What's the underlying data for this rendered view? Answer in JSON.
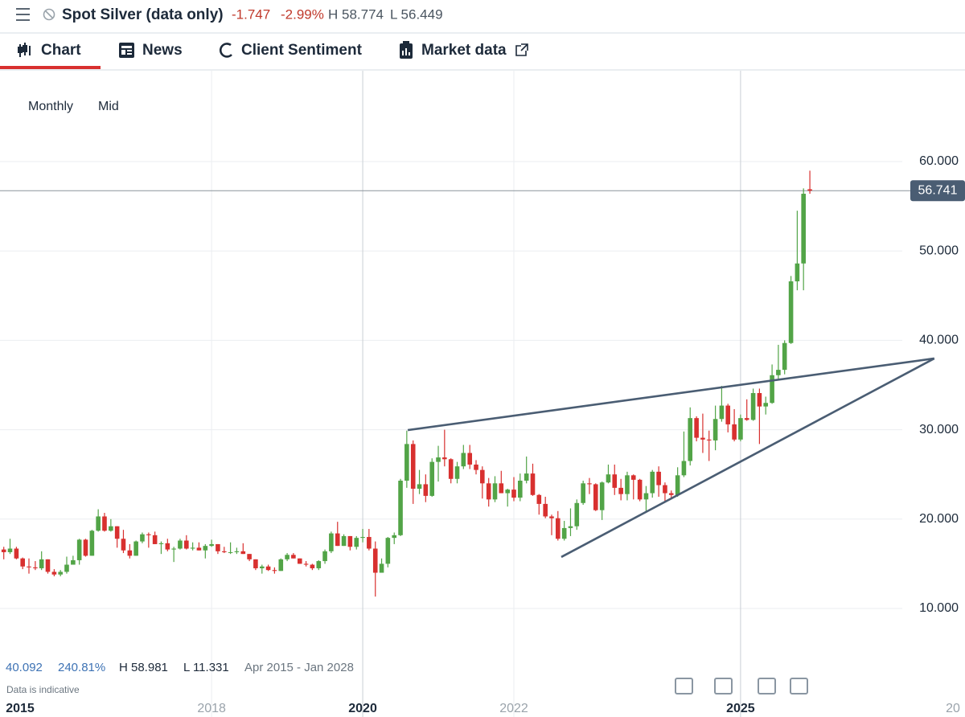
{
  "header": {
    "title": "Spot Silver (data only)",
    "change": "-1.747",
    "change_pct": "-2.99%",
    "high": "H 58.774",
    "low": "L 56.449"
  },
  "tabs": [
    "Chart",
    "News",
    "Client Sentiment",
    "Market data"
  ],
  "toolbar": {
    "interval": "Monthly",
    "price_type": "Mid"
  },
  "summary": {
    "change": "40.092",
    "change_pct": "240.81%",
    "high": "H 58.981",
    "low": "L 11.331",
    "range": "Apr 2015 - Jan 2028"
  },
  "note": "Data is indicative",
  "chart_data": {
    "type": "candlestick",
    "x": [
      2015.25,
      2015.333,
      2015.417,
      2015.5,
      2015.583,
      2015.667,
      2015.75,
      2015.833,
      2015.917,
      2016,
      2016.083,
      2016.167,
      2016.25,
      2016.333,
      2016.417,
      2016.5,
      2016.583,
      2016.667,
      2016.75,
      2016.833,
      2016.917,
      2017,
      2017.083,
      2017.167,
      2017.25,
      2017.333,
      2017.417,
      2017.5,
      2017.583,
      2017.667,
      2017.75,
      2017.833,
      2017.917,
      2018,
      2018.083,
      2018.167,
      2018.25,
      2018.333,
      2018.417,
      2018.5,
      2018.583,
      2018.667,
      2018.75,
      2018.833,
      2018.917,
      2019,
      2019.083,
      2019.167,
      2019.25,
      2019.333,
      2019.417,
      2019.5,
      2019.583,
      2019.667,
      2019.75,
      2019.833,
      2019.917,
      2020,
      2020.083,
      2020.167,
      2020.25,
      2020.333,
      2020.417,
      2020.5,
      2020.583,
      2020.667,
      2020.75,
      2020.833,
      2020.917,
      2021,
      2021.083,
      2021.167,
      2021.25,
      2021.333,
      2021.417,
      2021.5,
      2021.583,
      2021.667,
      2021.75,
      2021.833,
      2021.917,
      2022,
      2022.083,
      2022.167,
      2022.25,
      2022.333,
      2022.417,
      2022.5,
      2022.583,
      2022.667,
      2022.75,
      2022.833,
      2022.917,
      2023,
      2023.083,
      2023.167,
      2023.25,
      2023.333,
      2023.417,
      2023.5,
      2023.583,
      2023.667,
      2023.75,
      2023.833,
      2023.917,
      2024,
      2024.083,
      2024.167,
      2024.25,
      2024.333,
      2024.417,
      2024.5,
      2024.583,
      2024.667,
      2024.75,
      2024.833,
      2024.917,
      2025,
      2025.083,
      2025.167,
      2025.25,
      2025.333,
      2025.417,
      2025.5,
      2025.583,
      2025.667,
      2025.75,
      2025.833,
      2025.917
    ],
    "open": [
      16.6,
      16.3,
      16.7,
      15.6,
      14.7,
      14.6,
      14.5,
      15.5,
      14.1,
      13.8,
      14.1,
      14.9,
      15.4,
      17.7,
      15.9,
      18.7,
      20.3,
      18.7,
      19.2,
      17.8,
      16.5,
      15.9,
      17.5,
      18.3,
      18.2,
      17.2,
      17.3,
      16.6,
      16.7,
      17.6,
      16.7,
      16.8,
      16.5,
      17.0,
      17.2,
      16.4,
      16.3,
      16.3,
      16.4,
      16.1,
      15.5,
      14.5,
      14.7,
      14.3,
      14.2,
      15.5,
      16.0,
      15.6,
      15.0,
      14.9,
      14.5,
      15.3,
      16.4,
      18.4,
      17.0,
      18.1,
      16.9,
      17.9,
      18.0,
      16.7,
      14.0,
      15.0,
      17.9,
      18.2,
      24.3,
      28.4,
      23.4,
      23.9,
      22.6,
      26.4,
      26.9,
      26.7,
      24.5,
      25.9,
      27.4,
      26.1,
      25.5,
      24.0,
      22.2,
      24.0,
      22.9,
      23.3,
      22.4,
      24.3,
      25.1,
      22.7,
      21.7,
      20.3,
      20.1,
      17.8,
      19.0,
      19.2,
      21.8,
      24.0,
      23.9,
      21.0,
      24.1,
      25.0,
      23.5,
      22.8,
      24.9,
      24.4,
      22.2,
      22.9,
      25.3,
      23.8,
      22.9,
      22.7,
      24.9,
      26.5,
      31.3,
      29.1,
      28.9,
      28.8,
      31.2,
      32.7,
      30.6,
      28.9,
      31.3,
      31.1,
      34.1,
      32.6,
      33.0,
      36.1,
      36.7,
      39.7,
      46.6,
      48.6,
      56.9
    ],
    "high": [
      16.9,
      17.8,
      16.9,
      15.7,
      15.6,
      15.3,
      16.4,
      15.5,
      14.4,
      14.3,
      15.8,
      15.9,
      17.8,
      17.8,
      18.8,
      21.1,
      20.7,
      20.0,
      19.2,
      18.8,
      17.2,
      17.6,
      18.5,
      18.5,
      18.6,
      17.5,
      17.8,
      16.9,
      17.8,
      18.2,
      17.4,
      17.4,
      17.2,
      17.7,
      17.2,
      16.9,
      17.4,
      16.8,
      17.3,
      16.1,
      15.5,
      14.9,
      14.9,
      14.6,
      15.6,
      16.2,
      16.2,
      15.6,
      15.3,
      15.0,
      15.4,
      16.6,
      18.6,
      19.7,
      18.3,
      18.1,
      18.1,
      18.9,
      18.9,
      17.5,
      15.6,
      18.0,
      18.5,
      24.5,
      29.9,
      28.8,
      25.5,
      25.0,
      26.8,
      28.2,
      30.0,
      26.8,
      26.4,
      28.3,
      28.3,
      26.6,
      25.9,
      24.6,
      24.8,
      25.4,
      23.4,
      24.7,
      25.1,
      27.0,
      26.2,
      22.8,
      22.5,
      20.5,
      20.9,
      19.8,
      21.2,
      22.2,
      24.3,
      24.6,
      24.0,
      24.2,
      26.1,
      26.1,
      24.5,
      25.3,
      25.0,
      24.5,
      23.7,
      25.5,
      25.9,
      24.1,
      23.2,
      25.8,
      29.8,
      32.5,
      31.5,
      31.8,
      29.9,
      32.7,
      34.9,
      32.9,
      32.3,
      31.7,
      33.4,
      34.6,
      34.6,
      33.7,
      37.3,
      39.5,
      40.0,
      47.2,
      54.5,
      57.0,
      58.981
    ],
    "low": [
      15.5,
      16.1,
      15.5,
      14.4,
      13.9,
      14.3,
      14.3,
      13.9,
      13.6,
      13.6,
      13.9,
      14.9,
      14.9,
      15.8,
      15.9,
      18.6,
      18.6,
      18.6,
      16.8,
      16.2,
      15.6,
      15.9,
      17.3,
      16.8,
      17.2,
      16.1,
      16.4,
      15.2,
      16.6,
      16.6,
      16.5,
      16.5,
      15.6,
      16.9,
      16.1,
      16.2,
      16.1,
      16.1,
      16.1,
      15.3,
      14.3,
      13.9,
      14.2,
      13.9,
      14.2,
      15.3,
      15.6,
      15.0,
      14.7,
      14.3,
      14.3,
      15.0,
      16.2,
      17.0,
      17.0,
      16.5,
      16.6,
      17.4,
      16.5,
      11.331,
      14.0,
      14.6,
      17.2,
      18.1,
      23.5,
      21.7,
      22.8,
      21.9,
      22.5,
      24.2,
      25.9,
      24.0,
      24.0,
      25.6,
      25.6,
      25.0,
      22.3,
      21.4,
      21.9,
      22.9,
      21.4,
      22.0,
      22.0,
      24.0,
      22.6,
      20.5,
      20.1,
      18.2,
      17.6,
      17.6,
      18.1,
      18.8,
      21.6,
      22.8,
      20.9,
      19.9,
      24.0,
      22.7,
      22.1,
      22.1,
      22.2,
      22.0,
      20.7,
      22.4,
      22.5,
      21.9,
      22.3,
      22.5,
      24.7,
      26.0,
      28.7,
      27.4,
      26.5,
      27.7,
      30.9,
      29.7,
      28.7,
      28.7,
      31.0,
      31.0,
      28.4,
      31.7,
      32.9,
      35.5,
      36.2,
      39.6,
      45.6,
      45.6,
      56.4
    ],
    "close": [
      16.3,
      16.7,
      15.6,
      14.7,
      14.6,
      14.5,
      15.5,
      14.1,
      13.8,
      14.1,
      14.9,
      15.4,
      17.7,
      15.9,
      18.7,
      20.3,
      18.7,
      19.2,
      17.8,
      16.5,
      15.9,
      17.5,
      18.3,
      18.2,
      17.2,
      17.3,
      16.6,
      16.7,
      17.6,
      16.7,
      16.8,
      16.5,
      17.0,
      17.2,
      16.4,
      16.3,
      16.3,
      16.4,
      16.1,
      15.5,
      14.5,
      14.7,
      14.3,
      14.2,
      15.5,
      16.0,
      15.6,
      15.0,
      14.9,
      14.5,
      15.3,
      16.4,
      18.4,
      17.0,
      18.1,
      16.9,
      17.9,
      18.0,
      16.7,
      14.0,
      15.0,
      17.9,
      18.2,
      24.3,
      28.4,
      23.4,
      23.9,
      22.6,
      26.4,
      26.9,
      26.7,
      24.5,
      25.9,
      27.4,
      26.1,
      25.5,
      24.0,
      22.2,
      24.0,
      22.9,
      23.3,
      22.4,
      24.3,
      25.1,
      22.7,
      21.7,
      20.3,
      20.1,
      17.8,
      19.0,
      19.2,
      21.8,
      24.0,
      23.9,
      21.0,
      24.1,
      25.0,
      23.5,
      22.8,
      24.9,
      24.4,
      22.2,
      22.9,
      25.3,
      23.8,
      22.9,
      22.7,
      24.9,
      26.5,
      31.3,
      29.1,
      28.9,
      28.8,
      31.2,
      32.7,
      30.6,
      28.9,
      31.3,
      31.1,
      34.1,
      32.6,
      33.0,
      36.1,
      36.7,
      39.7,
      46.6,
      48.6,
      56.4,
      56.741
    ],
    "up_color": "#52a447",
    "down_color": "#d8302f",
    "xlim": [
      2015.2,
      2027.97
    ],
    "xticks": [
      2015,
      2018,
      2020,
      2022,
      2025,
      {
        "value": 2028,
        "label": "20"
      }
    ],
    "ylim": [
      0,
      70
    ],
    "yticks": [
      {
        "value": 10,
        "label": "10.000"
      },
      {
        "value": 20,
        "label": "20.000"
      },
      {
        "value": 30,
        "label": "30.000"
      },
      {
        "value": 40,
        "label": "40.000"
      },
      {
        "value": 50,
        "label": "50.000"
      },
      {
        "value": 60,
        "label": "60.000"
      }
    ],
    "grid": true,
    "last_price": 56.741,
    "trend_color": "#4a5d73",
    "trendlines": [
      {
        "x": [
          2020.596,
          2027.564
        ],
        "y": [
          29.96,
          37.97
        ]
      },
      {
        "x": [
          2022.628,
          2027.564
        ],
        "y": [
          15.76,
          37.97
        ]
      }
    ]
  }
}
